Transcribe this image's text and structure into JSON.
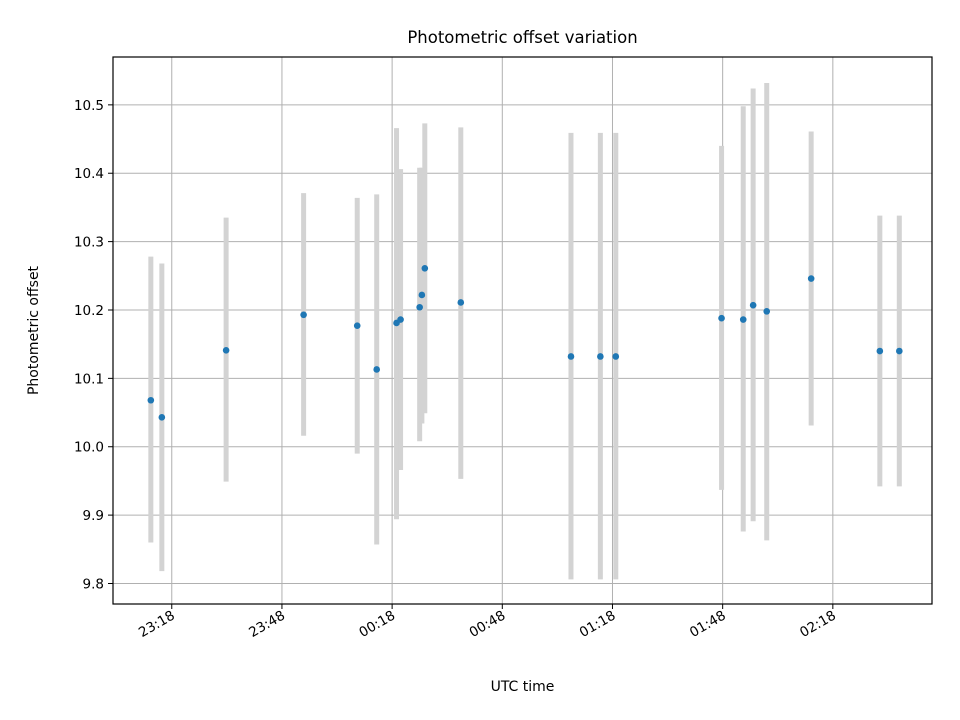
{
  "chart_data": {
    "type": "scatter",
    "title": "Photometric offset variation",
    "xlabel": "UTC time",
    "ylabel": "Photometric offset",
    "xlim_minutes": [
      1382,
      1605
    ],
    "ylim": [
      9.77,
      10.57
    ],
    "grid": true,
    "colors": {
      "point": "#1f77b4",
      "errorbar": "#d3d3d3",
      "grid": "#b0b0b0"
    },
    "x_ticks": [
      {
        "minute": 1398,
        "label": "23:18"
      },
      {
        "minute": 1428,
        "label": "23:48"
      },
      {
        "minute": 1458,
        "label": "00:18"
      },
      {
        "minute": 1488,
        "label": "00:48"
      },
      {
        "minute": 1518,
        "label": "01:18"
      },
      {
        "minute": 1548,
        "label": "01:48"
      },
      {
        "minute": 1578,
        "label": "02:18"
      }
    ],
    "y_ticks": [
      {
        "value": 9.8,
        "label": "9.8"
      },
      {
        "value": 9.9,
        "label": "9.9"
      },
      {
        "value": 10.0,
        "label": "10.0"
      },
      {
        "value": 10.1,
        "label": "10.1"
      },
      {
        "value": 10.2,
        "label": "10.2"
      },
      {
        "value": 10.3,
        "label": "10.3"
      },
      {
        "value": 10.4,
        "label": "10.4"
      },
      {
        "value": 10.5,
        "label": "10.5"
      }
    ],
    "points": [
      {
        "t": 1392.3,
        "y": 10.068,
        "lo": 9.86,
        "hi": 10.278
      },
      {
        "t": 1395.3,
        "y": 10.043,
        "lo": 9.818,
        "hi": 10.268
      },
      {
        "t": 1412.8,
        "y": 10.141,
        "lo": 9.949,
        "hi": 10.335
      },
      {
        "t": 1433.9,
        "y": 10.193,
        "lo": 10.016,
        "hi": 10.371
      },
      {
        "t": 1448.5,
        "y": 10.177,
        "lo": 9.99,
        "hi": 10.364
      },
      {
        "t": 1453.8,
        "y": 10.113,
        "lo": 9.857,
        "hi": 10.369
      },
      {
        "t": 1459.2,
        "y": 10.181,
        "lo": 9.894,
        "hi": 10.466
      },
      {
        "t": 1460.3,
        "y": 10.186,
        "lo": 9.966,
        "hi": 10.406
      },
      {
        "t": 1465.5,
        "y": 10.204,
        "lo": 10.008,
        "hi": 10.408
      },
      {
        "t": 1466.1,
        "y": 10.222,
        "lo": 10.034,
        "hi": 10.408
      },
      {
        "t": 1466.9,
        "y": 10.261,
        "lo": 10.049,
        "hi": 10.473
      },
      {
        "t": 1476.7,
        "y": 10.211,
        "lo": 9.953,
        "hi": 10.467
      },
      {
        "t": 1506.7,
        "y": 10.132,
        "lo": 9.806,
        "hi": 10.459
      },
      {
        "t": 1514.7,
        "y": 10.132,
        "lo": 9.806,
        "hi": 10.459
      },
      {
        "t": 1518.9,
        "y": 10.132,
        "lo": 9.806,
        "hi": 10.459
      },
      {
        "t": 1547.7,
        "y": 10.188,
        "lo": 9.937,
        "hi": 10.44
      },
      {
        "t": 1553.6,
        "y": 10.186,
        "lo": 9.876,
        "hi": 10.498
      },
      {
        "t": 1556.3,
        "y": 10.207,
        "lo": 9.891,
        "hi": 10.524
      },
      {
        "t": 1560.0,
        "y": 10.198,
        "lo": 9.863,
        "hi": 10.532
      },
      {
        "t": 1572.1,
        "y": 10.246,
        "lo": 10.031,
        "hi": 10.461
      },
      {
        "t": 1590.8,
        "y": 10.14,
        "lo": 9.942,
        "hi": 10.338
      },
      {
        "t": 1596.1,
        "y": 10.14,
        "lo": 9.942,
        "hi": 10.338
      }
    ]
  }
}
